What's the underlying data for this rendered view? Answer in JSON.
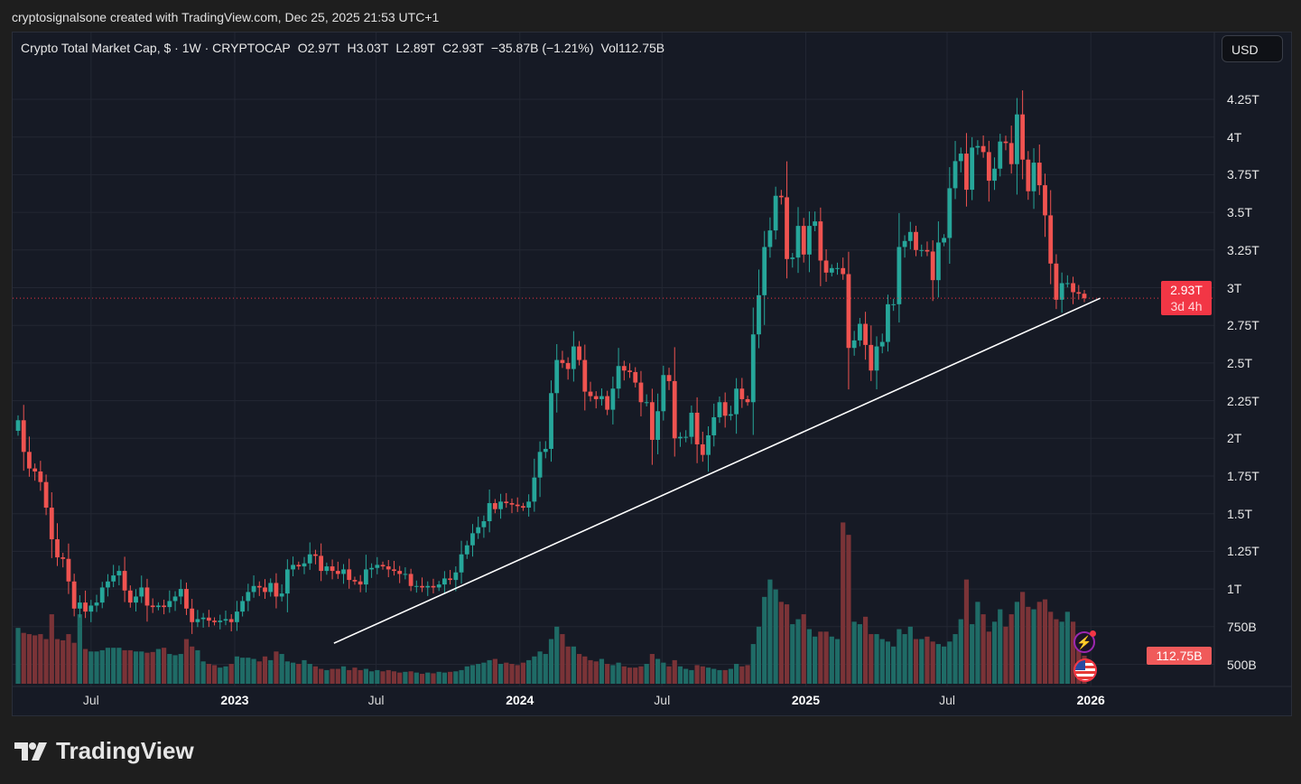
{
  "credit": "cryptosignalsone created with TradingView.com, Dec 25, 2025 21:53 UTC+1",
  "legend": {
    "symbol": "Crypto Total Market Cap, $ · 1W · CRYPTOCAP",
    "open": "O2.97T",
    "high": "H3.03T",
    "low": "L2.89T",
    "close": "C2.93T",
    "change": "−35.87B (−1.21%)",
    "volume": "Vol112.75B"
  },
  "currency_button": "USD",
  "last_price": {
    "value": "2.93T",
    "countdown": "3d 4h"
  },
  "last_volume": "112.75B",
  "brand": "TradingView",
  "colors": {
    "up": "#26a69a",
    "down": "#ef5350",
    "vol_up": "#1f6b66",
    "vol_down": "#7a3337",
    "background": "#161a25",
    "trendline": "#ffffff",
    "last_price": "#f23645"
  },
  "chart_data": {
    "type": "candlestick",
    "title": "Crypto Total Market Cap, $ · 1W · CRYPTOCAP",
    "interval": "1W",
    "unit_price": "T (USD trillions)",
    "unit_volume": "B (USD billions)",
    "ylim": [
      0.5,
      4.35
    ],
    "grid": true,
    "first_open": 2.05,
    "closes": [
      2.12,
      1.91,
      1.8,
      1.78,
      1.71,
      1.54,
      1.33,
      1.21,
      1.2,
      1.05,
      0.87,
      0.91,
      0.85,
      0.89,
      0.91,
      1.01,
      1.05,
      1.09,
      1.12,
      0.99,
      0.91,
      0.95,
      1.01,
      0.89,
      0.88,
      0.89,
      0.88,
      0.92,
      0.95,
      1.0,
      0.87,
      0.78,
      0.8,
      0.81,
      0.79,
      0.78,
      0.79,
      0.8,
      0.78,
      0.85,
      0.92,
      0.98,
      1.02,
      1.01,
      0.98,
      1.04,
      0.95,
      0.97,
      1.13,
      1.16,
      1.15,
      1.17,
      1.23,
      1.22,
      1.12,
      1.15,
      1.12,
      1.1,
      1.13,
      1.06,
      1.05,
      1.03,
      1.13,
      1.14,
      1.16,
      1.15,
      1.13,
      1.12,
      1.1,
      1.1,
      1.02,
      1.02,
      1.01,
      1.02,
      1.01,
      1.03,
      1.07,
      1.06,
      1.11,
      1.23,
      1.29,
      1.37,
      1.41,
      1.45,
      1.57,
      1.53,
      1.58,
      1.57,
      1.56,
      1.55,
      1.54,
      1.58,
      1.74,
      1.91,
      1.93,
      2.3,
      2.52,
      2.5,
      2.46,
      2.61,
      2.52,
      2.31,
      2.28,
      2.26,
      2.28,
      2.19,
      2.33,
      2.48,
      2.45,
      2.44,
      2.37,
      2.24,
      2.24,
      1.99,
      2.18,
      2.42,
      2.38,
      2.0,
      2.01,
      2.01,
      2.17,
      1.96,
      1.89,
      2.02,
      2.14,
      2.24,
      2.15,
      2.16,
      2.33,
      2.26,
      2.24,
      2.69,
      2.95,
      3.27,
      3.38,
      3.61,
      3.6,
      3.19,
      3.2,
      3.41,
      3.22,
      3.41,
      3.44,
      3.18,
      3.1,
      3.13,
      3.13,
      3.09,
      2.6,
      2.65,
      2.76,
      2.62,
      2.45,
      2.61,
      2.64,
      2.89,
      2.89,
      3.27,
      3.31,
      3.37,
      3.25,
      3.25,
      3.24,
      3.05,
      3.3,
      3.33,
      3.66,
      3.84,
      3.89,
      3.65,
      3.93,
      3.94,
      3.9,
      3.71,
      3.79,
      3.97,
      3.96,
      3.82,
      4.15,
      3.85,
      3.64,
      3.83,
      3.68,
      3.48,
      3.16,
      2.92,
      3.03,
      3.03,
      2.97,
      2.96,
      2.93
    ],
    "volumes": [
      225,
      205,
      200,
      195,
      200,
      180,
      280,
      180,
      175,
      200,
      165,
      280,
      140,
      130,
      130,
      135,
      145,
      145,
      145,
      135,
      135,
      130,
      130,
      125,
      128,
      140,
      145,
      120,
      115,
      120,
      180,
      150,
      135,
      90,
      80,
      75,
      65,
      70,
      80,
      110,
      105,
      105,
      100,
      90,
      110,
      95,
      130,
      120,
      90,
      85,
      80,
      95,
      80,
      70,
      60,
      55,
      60,
      60,
      70,
      55,
      65,
      55,
      60,
      50,
      55,
      50,
      55,
      50,
      45,
      48,
      50,
      45,
      40,
      45,
      42,
      48,
      45,
      48,
      50,
      55,
      70,
      75,
      80,
      85,
      95,
      100,
      80,
      85,
      80,
      75,
      85,
      95,
      110,
      130,
      120,
      180,
      230,
      200,
      150,
      150,
      120,
      110,
      95,
      90,
      100,
      80,
      75,
      85,
      70,
      65,
      65,
      70,
      80,
      120,
      100,
      85,
      70,
      95,
      70,
      60,
      55,
      75,
      70,
      65,
      60,
      55,
      55,
      60,
      80,
      70,
      75,
      160,
      230,
      350,
      420,
      380,
      330,
      320,
      240,
      260,
      280,
      220,
      190,
      210,
      210,
      190,
      180,
      650,
      600,
      250,
      240,
      270,
      200,
      200,
      180,
      170,
      150,
      220,
      200,
      230,
      180,
      180,
      190,
      170,
      160,
      150,
      170,
      200,
      260,
      420,
      240,
      330,
      280,
      210,
      250,
      300,
      230,
      280,
      330,
      370,
      310,
      300,
      330,
      340,
      290,
      260,
      250,
      290,
      250,
      200,
      113
    ],
    "last_close": 2.93,
    "y_ticks": [
      {
        "label": "4.25T",
        "value": 4.25
      },
      {
        "label": "4T",
        "value": 4.0
      },
      {
        "label": "3.75T",
        "value": 3.75
      },
      {
        "label": "3.5T",
        "value": 3.5
      },
      {
        "label": "3.25T",
        "value": 3.25
      },
      {
        "label": "3T",
        "value": 3.0
      },
      {
        "label": "2.75T",
        "value": 2.75
      },
      {
        "label": "2.5T",
        "value": 2.5
      },
      {
        "label": "2.25T",
        "value": 2.25
      },
      {
        "label": "2T",
        "value": 2.0
      },
      {
        "label": "1.75T",
        "value": 1.75
      },
      {
        "label": "1.5T",
        "value": 1.5
      },
      {
        "label": "1.25T",
        "value": 1.25
      },
      {
        "label": "1T",
        "value": 1.0
      },
      {
        "label": "750B",
        "value": 0.75
      },
      {
        "label": "500B",
        "value": 0.5
      }
    ],
    "x_ticks": [
      {
        "label": "Jul",
        "date": "2022-07-01",
        "year": false
      },
      {
        "label": "2023",
        "date": "2023-01-01",
        "year": true
      },
      {
        "label": "Jul",
        "date": "2023-07-01",
        "year": false
      },
      {
        "label": "2024",
        "date": "2024-01-01",
        "year": true
      },
      {
        "label": "Jul",
        "date": "2024-07-01",
        "year": false
      },
      {
        "label": "2025",
        "date": "2025-01-01",
        "year": true
      },
      {
        "label": "Jul",
        "date": "2025-07-01",
        "year": false
      },
      {
        "label": "2026",
        "date": "2026-01-01",
        "year": true
      }
    ],
    "trendline": {
      "from": {
        "date": "2023-05-08",
        "value": 0.64
      },
      "to": {
        "date": "2026-01-13",
        "value": 2.93
      }
    }
  }
}
